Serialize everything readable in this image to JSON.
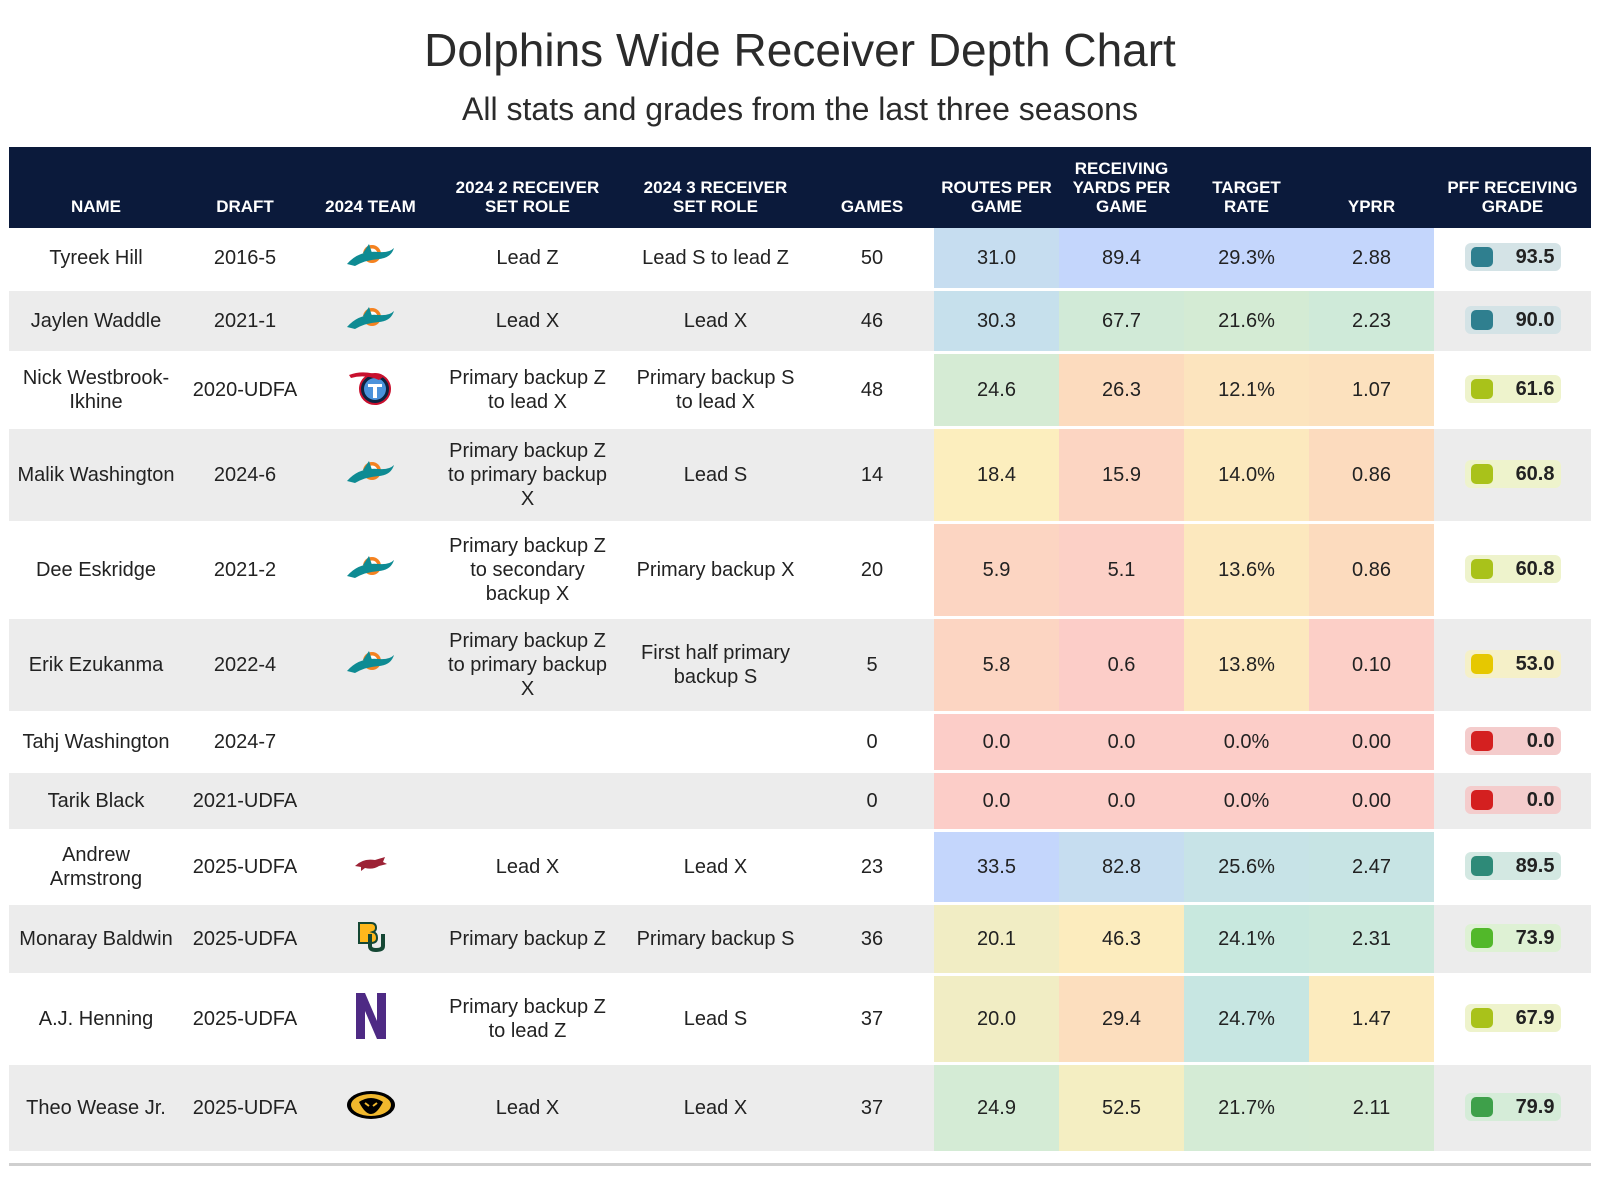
{
  "chart_data": {
    "type": "table",
    "title": "Dolphins Wide Receiver Depth Chart",
    "subtitle": "All stats and grades from the last three seasons",
    "columns": [
      "NAME",
      "DRAFT",
      "2024 TEAM",
      "2024 2 RECEIVER SET ROLE",
      "2024 3 RECEIVER SET ROLE",
      "GAMES",
      "ROUTES PER GAME",
      "RECEIVING YARDS PER GAME",
      "TARGET RATE",
      "YPRR",
      "PFF RECEIVING GRADE"
    ],
    "rows": [
      {
        "name": "Tyreek Hill",
        "draft": "2016-5",
        "team_icon": "dolphins-logo",
        "role2": "Lead Z",
        "role3": "Lead S to lead Z",
        "games": "50",
        "routes": "31.0",
        "yards": "89.4",
        "target": "29.3%",
        "yprr": "2.88",
        "grade": "93.5"
      },
      {
        "name": "Jaylen Waddle",
        "draft": "2021-1",
        "team_icon": "dolphins-logo",
        "role2": "Lead X",
        "role3": "Lead X",
        "games": "46",
        "routes": "30.3",
        "yards": "67.7",
        "target": "21.6%",
        "yprr": "2.23",
        "grade": "90.0"
      },
      {
        "name": "Nick Westbrook-Ikhine",
        "draft": "2020-UDFA",
        "team_icon": "titans-logo",
        "role2": "Primary backup Z to lead X",
        "role3": "Primary backup S to lead X",
        "games": "48",
        "routes": "24.6",
        "yards": "26.3",
        "target": "12.1%",
        "yprr": "1.07",
        "grade": "61.6"
      },
      {
        "name": "Malik Washington",
        "draft": "2024-6",
        "team_icon": "dolphins-logo",
        "role2": "Primary backup Z to primary backup X",
        "role3": "Lead S",
        "games": "14",
        "routes": "18.4",
        "yards": "15.9",
        "target": "14.0%",
        "yprr": "0.86",
        "grade": "60.8"
      },
      {
        "name": "Dee Eskridge",
        "draft": "2021-2",
        "team_icon": "dolphins-logo",
        "role2": "Primary backup Z to secondary backup X",
        "role3": "Primary backup X",
        "games": "20",
        "routes": "5.9",
        "yards": "5.1",
        "target": "13.6%",
        "yprr": "0.86",
        "grade": "60.8"
      },
      {
        "name": "Erik Ezukanma",
        "draft": "2022-4",
        "team_icon": "dolphins-logo",
        "role2": "Primary backup Z to primary backup X",
        "role3": "First half primary backup S",
        "games": "5",
        "routes": "5.8",
        "yards": "0.6",
        "target": "13.8%",
        "yprr": "0.10",
        "grade": "53.0"
      },
      {
        "name": "Tahj Washington",
        "draft": "2024-7",
        "team_icon": "",
        "role2": "",
        "role3": "",
        "games": "0",
        "routes": "0.0",
        "yards": "0.0",
        "target": "0.0%",
        "yprr": "0.00",
        "grade": "0.0"
      },
      {
        "name": "Tarik Black",
        "draft": "2021-UDFA",
        "team_icon": "",
        "role2": "",
        "role3": "",
        "games": "0",
        "routes": "0.0",
        "yards": "0.0",
        "target": "0.0%",
        "yprr": "0.00",
        "grade": "0.0"
      },
      {
        "name": "Andrew Armstrong",
        "draft": "2025-UDFA",
        "team_icon": "arkansas-logo",
        "role2": "Lead X",
        "role3": "Lead X",
        "games": "23",
        "routes": "33.5",
        "yards": "82.8",
        "target": "25.6%",
        "yprr": "2.47",
        "grade": "89.5"
      },
      {
        "name": "Monaray Baldwin",
        "draft": "2025-UDFA",
        "team_icon": "baylor-logo",
        "role2": "Primary backup Z",
        "role3": "Primary backup S",
        "games": "36",
        "routes": "20.1",
        "yards": "46.3",
        "target": "24.1%",
        "yprr": "2.31",
        "grade": "73.9"
      },
      {
        "name": "A.J. Henning",
        "draft": "2025-UDFA",
        "team_icon": "northwestern-logo",
        "role2": "Primary backup Z to lead Z",
        "role3": "Lead S",
        "games": "37",
        "routes": "20.0",
        "yards": "29.4",
        "target": "24.7%",
        "yprr": "1.47",
        "grade": "67.9"
      },
      {
        "name": "Theo Wease Jr.",
        "draft": "2025-UDFA",
        "team_icon": "missouri-logo",
        "role2": "Lead X",
        "role3": "Lead X",
        "games": "37",
        "routes": "24.9",
        "yards": "52.5",
        "target": "21.7%",
        "yprr": "2.11",
        "grade": "79.9"
      }
    ]
  },
  "colors": {
    "header_bg": "#0b1a3b",
    "header_text": "#ffffff",
    "row_alt": "#ececec"
  }
}
